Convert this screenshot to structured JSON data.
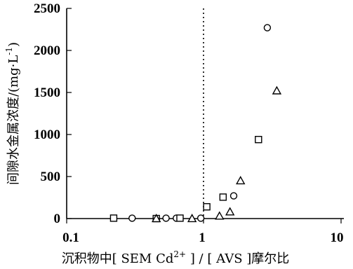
{
  "chart_data": {
    "type": "scatter",
    "title": "",
    "xlabel": {
      "before": "沉积物中[ SEM Cd",
      "superscript": "2+",
      "after": " ] / [ AVS ]摩尔比"
    },
    "ylabel": {
      "before": "间隙水金属浓度/(mg·L",
      "superscript": "-1",
      "after": ")"
    },
    "x_scale": "log",
    "xlim": [
      0.1,
      10
    ],
    "ylim": [
      0,
      2500
    ],
    "x_ticks": [
      0.1,
      1,
      10
    ],
    "x_tick_labels": [
      "0.1",
      "1",
      "10"
    ],
    "y_ticks": [
      0,
      500,
      1000,
      1500,
      2000,
      2500
    ],
    "y_tick_labels": [
      "0",
      "500",
      "1000",
      "1500",
      "2000",
      "2500"
    ],
    "grid": false,
    "reference_line": {
      "x": 1,
      "style": "dotted"
    },
    "series": [
      {
        "marker": "circle",
        "points": [
          {
            "x": 0.3,
            "y": 5
          },
          {
            "x": 0.53,
            "y": 5
          },
          {
            "x": 0.63,
            "y": 5
          },
          {
            "x": 0.95,
            "y": 5
          },
          {
            "x": 1.65,
            "y": 270
          },
          {
            "x": 2.9,
            "y": 2270
          }
        ]
      },
      {
        "marker": "square",
        "points": [
          {
            "x": 0.22,
            "y": 5
          },
          {
            "x": 0.45,
            "y": 0
          },
          {
            "x": 0.67,
            "y": 5
          },
          {
            "x": 1.05,
            "y": 140
          },
          {
            "x": 1.38,
            "y": 255
          },
          {
            "x": 2.5,
            "y": 940
          }
        ]
      },
      {
        "marker": "triangle",
        "points": [
          {
            "x": 0.45,
            "y": 0
          },
          {
            "x": 0.82,
            "y": 0
          },
          {
            "x": 1.3,
            "y": 30
          },
          {
            "x": 1.55,
            "y": 80
          },
          {
            "x": 1.85,
            "y": 450
          },
          {
            "x": 3.4,
            "y": 1520
          }
        ]
      }
    ]
  }
}
